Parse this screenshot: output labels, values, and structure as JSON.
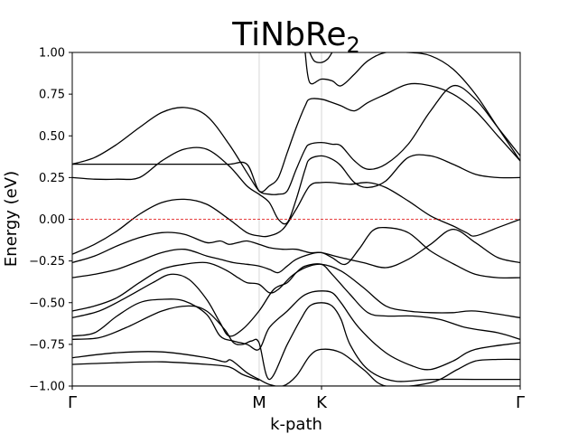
{
  "chart_data": {
    "type": "line",
    "title_main": "TiNbRe",
    "title_sub": "2",
    "xlabel": "k-path",
    "ylabel": "Energy (eV)",
    "ylim": [
      -1.0,
      1.0
    ],
    "xlim": [
      0,
      1
    ],
    "yticks": [
      -1.0,
      -0.75,
      -0.5,
      -0.25,
      0.0,
      0.25,
      0.5,
      0.75,
      1.0
    ],
    "ytick_labels": [
      "−1.00",
      "−0.75",
      "−0.50",
      "−0.25",
      "0.00",
      "0.25",
      "0.50",
      "0.75",
      "1.00"
    ],
    "kpoints": [
      {
        "label": "Γ",
        "x": 0.0
      },
      {
        "label": "M",
        "x": 0.4173
      },
      {
        "label": "K",
        "x": 0.5565
      },
      {
        "label": "Γ",
        "x": 1.0
      }
    ],
    "fermi_level": 0.0,
    "grid": false,
    "bands": [
      {
        "x": [
          0,
          0.09,
          0.2,
          0.3,
          0.38,
          0.417,
          0.44,
          0.5,
          0.556,
          0.6,
          0.65,
          0.72,
          0.8,
          0.9,
          1.0
        ],
        "y": [
          -1.0,
          -1.0,
          -1.0,
          -1.0,
          -1.0,
          -1.0,
          -1.0,
          -1.0,
          -1.0,
          -1.0,
          -1.0,
          -1.0,
          -1.0,
          -1.0,
          -1.0
        ]
      },
      {
        "x": [
          0.0,
          0.1,
          0.2,
          0.3,
          0.35,
          0.38,
          0.417
        ],
        "y": [
          -0.87,
          -0.86,
          -0.855,
          -0.87,
          -0.885,
          -0.93,
          -0.965
        ]
      },
      {
        "x": [
          0.0,
          0.1,
          0.2,
          0.3,
          0.34,
          0.355,
          0.39,
          0.417,
          0.44,
          0.47,
          0.5,
          0.53,
          0.556,
          0.6,
          0.65,
          0.7,
          0.8,
          0.86,
          0.9,
          0.95,
          1.0
        ],
        "y": [
          -0.83,
          -0.8,
          -0.795,
          -0.83,
          -0.855,
          -0.845,
          -0.92,
          -0.96,
          -0.99,
          -1.0,
          -0.94,
          -0.82,
          -0.78,
          -0.8,
          -0.9,
          -1.0,
          -0.98,
          -0.9,
          -0.85,
          -0.84,
          -0.84
        ]
      },
      {
        "x": [
          0.0,
          0.06,
          0.12,
          0.2,
          0.26,
          0.3,
          0.34,
          0.36,
          0.38,
          0.4,
          0.417,
          0.44,
          0.48,
          0.51,
          0.53,
          0.556,
          0.58,
          0.6,
          0.62,
          0.66,
          0.72,
          0.8,
          0.9,
          1.0
        ],
        "y": [
          -0.72,
          -0.71,
          -0.65,
          -0.55,
          -0.52,
          -0.55,
          -0.66,
          -0.74,
          -0.75,
          -0.73,
          -0.74,
          -0.96,
          -0.75,
          -0.6,
          -0.52,
          -0.5,
          -0.52,
          -0.6,
          -0.75,
          -0.9,
          -0.97,
          -0.96,
          -0.96,
          -0.96
        ]
      },
      {
        "x": [
          0.0,
          0.05,
          0.1,
          0.15,
          0.2,
          0.25,
          0.3,
          0.33,
          0.36,
          0.39,
          0.417,
          0.44,
          0.48,
          0.51,
          0.53,
          0.556,
          0.58,
          0.6,
          0.64,
          0.7,
          0.76,
          0.8,
          0.85,
          0.9,
          1.0
        ],
        "y": [
          -0.7,
          -0.68,
          -0.58,
          -0.5,
          -0.48,
          -0.49,
          -0.57,
          -0.7,
          -0.73,
          -0.75,
          -0.78,
          -0.65,
          -0.55,
          -0.47,
          -0.44,
          -0.43,
          -0.44,
          -0.5,
          -0.65,
          -0.8,
          -0.88,
          -0.9,
          -0.85,
          -0.78,
          -0.74
        ]
      },
      {
        "x": [
          0.0,
          0.06,
          0.12,
          0.18,
          0.22,
          0.26,
          0.3,
          0.33,
          0.35,
          0.38,
          0.417,
          0.45,
          0.48,
          0.5,
          0.52,
          0.556,
          0.58,
          0.62,
          0.66,
          0.7,
          0.76,
          0.82,
          0.88,
          0.95,
          1.0
        ],
        "y": [
          -0.59,
          -0.55,
          -0.47,
          -0.38,
          -0.33,
          -0.36,
          -0.48,
          -0.62,
          -0.7,
          -0.66,
          -0.55,
          -0.42,
          -0.38,
          -0.32,
          -0.28,
          -0.27,
          -0.33,
          -0.45,
          -0.56,
          -0.58,
          -0.58,
          -0.6,
          -0.65,
          -0.68,
          -0.72
        ]
      },
      {
        "x": [
          0.0,
          0.05,
          0.1,
          0.15,
          0.2,
          0.25,
          0.3,
          0.34,
          0.37,
          0.39,
          0.417,
          0.44,
          0.46,
          0.49,
          0.52,
          0.556,
          0.6,
          0.65,
          0.7,
          0.75,
          0.8,
          0.85,
          0.9,
          1.0
        ],
        "y": [
          -0.55,
          -0.52,
          -0.47,
          -0.38,
          -0.3,
          -0.27,
          -0.26,
          -0.3,
          -0.35,
          -0.38,
          -0.39,
          -0.44,
          -0.42,
          -0.34,
          -0.29,
          -0.27,
          -0.31,
          -0.41,
          -0.52,
          -0.55,
          -0.56,
          -0.56,
          -0.55,
          -0.59
        ]
      },
      {
        "x": [
          0.0,
          0.05,
          0.1,
          0.15,
          0.2,
          0.25,
          0.3,
          0.33,
          0.36,
          0.39,
          0.417,
          0.44,
          0.46,
          0.48,
          0.5,
          0.53,
          0.556,
          0.58,
          0.61,
          0.64,
          0.67,
          0.7,
          0.75,
          0.8,
          0.86,
          0.9,
          0.95,
          1.0
        ],
        "y": [
          -0.35,
          -0.33,
          -0.3,
          -0.25,
          -0.2,
          -0.18,
          -0.22,
          -0.24,
          -0.26,
          -0.27,
          -0.28,
          -0.3,
          -0.32,
          -0.28,
          -0.24,
          -0.21,
          -0.2,
          -0.23,
          -0.27,
          -0.18,
          -0.07,
          -0.05,
          -0.08,
          -0.19,
          -0.28,
          -0.33,
          -0.35,
          -0.35
        ]
      },
      {
        "x": [
          0.0,
          0.05,
          0.1,
          0.15,
          0.2,
          0.25,
          0.3,
          0.33,
          0.35,
          0.37,
          0.39,
          0.417,
          0.44,
          0.47,
          0.5,
          0.53,
          0.556,
          0.6,
          0.65,
          0.7,
          0.75,
          0.8,
          0.85,
          0.9,
          0.95,
          1.0
        ],
        "y": [
          -0.26,
          -0.22,
          -0.16,
          -0.11,
          -0.08,
          -0.09,
          -0.14,
          -0.13,
          -0.15,
          -0.14,
          -0.13,
          -0.15,
          -0.17,
          -0.18,
          -0.18,
          -0.2,
          -0.2,
          -0.23,
          -0.26,
          -0.29,
          -0.24,
          -0.15,
          -0.06,
          -0.14,
          -0.23,
          -0.26
        ]
      },
      {
        "x": [
          0.0,
          0.05,
          0.1,
          0.15,
          0.2,
          0.25,
          0.3,
          0.35,
          0.39,
          0.417,
          0.44,
          0.47,
          0.5,
          0.53,
          0.556,
          0.58,
          0.62,
          0.66,
          0.7,
          0.75,
          0.8,
          0.85,
          0.88,
          0.9,
          0.95,
          1.0
        ],
        "y": [
          -0.21,
          -0.15,
          -0.07,
          0.03,
          0.1,
          0.12,
          0.09,
          0.0,
          -0.08,
          -0.1,
          -0.1,
          -0.06,
          0.06,
          0.2,
          0.22,
          0.22,
          0.21,
          0.22,
          0.19,
          0.11,
          0.02,
          -0.04,
          -0.08,
          -0.1,
          -0.05,
          0.0
        ]
      },
      {
        "x": [
          0.0,
          0.05,
          0.1,
          0.15,
          0.2,
          0.25,
          0.3,
          0.35,
          0.39,
          0.417,
          0.44,
          0.46,
          0.48,
          0.5,
          0.52,
          0.53,
          0.556,
          0.58,
          0.6,
          0.63,
          0.66,
          0.7,
          0.75,
          0.8,
          0.85,
          0.9,
          0.95,
          1.0
        ],
        "y": [
          0.25,
          0.24,
          0.24,
          0.25,
          0.35,
          0.42,
          0.42,
          0.32,
          0.2,
          0.15,
          0.1,
          0.0,
          -0.02,
          0.12,
          0.3,
          0.36,
          0.38,
          0.36,
          0.32,
          0.22,
          0.19,
          0.23,
          0.37,
          0.38,
          0.33,
          0.27,
          0.25,
          0.25
        ]
      },
      {
        "x": [
          0.0,
          0.05,
          0.1,
          0.15,
          0.2,
          0.25,
          0.3,
          0.35,
          0.39,
          0.417,
          0.44,
          0.46,
          0.48,
          0.5,
          0.52,
          0.53,
          0.556,
          0.58,
          0.6,
          0.63,
          0.66,
          0.7,
          0.75,
          0.8,
          0.85,
          0.9,
          0.95,
          1.0
        ],
        "y": [
          0.33,
          0.37,
          0.45,
          0.55,
          0.64,
          0.67,
          0.62,
          0.45,
          0.28,
          0.17,
          0.15,
          0.15,
          0.17,
          0.3,
          0.42,
          0.45,
          0.46,
          0.45,
          0.44,
          0.35,
          0.3,
          0.33,
          0.45,
          0.65,
          0.8,
          0.72,
          0.55,
          0.38
        ]
      },
      {
        "x": [
          0.0,
          0.05,
          0.1,
          0.15,
          0.2,
          0.25,
          0.3,
          0.35,
          0.39,
          0.417,
          0.44,
          0.46,
          0.48,
          0.5,
          0.52,
          0.53,
          0.556,
          0.58,
          0.6,
          0.63,
          0.66,
          0.7,
          0.75,
          0.8,
          0.85,
          0.9,
          0.95,
          1.0
        ],
        "y": [
          0.33,
          0.33,
          0.33,
          0.33,
          0.33,
          0.33,
          0.33,
          0.33,
          0.33,
          0.17,
          0.2,
          0.25,
          0.4,
          0.55,
          0.68,
          0.72,
          0.72,
          0.7,
          0.68,
          0.65,
          0.7,
          0.75,
          0.81,
          0.8,
          0.75,
          0.65,
          0.5,
          0.35
        ]
      },
      {
        "x": [
          0.52,
          0.53,
          0.556,
          0.58,
          0.6,
          0.63,
          0.66,
          0.7,
          0.75,
          0.8,
          0.85,
          0.9,
          0.95,
          1.0
        ],
        "y": [
          1.0,
          0.82,
          0.84,
          0.83,
          0.8,
          0.87,
          0.95,
          1.0,
          1.0,
          0.98,
          0.9,
          0.75,
          0.55,
          0.35
        ]
      },
      {
        "x": [
          0.53,
          0.54,
          0.556,
          0.57,
          0.58
        ],
        "y": [
          1.0,
          0.95,
          0.94,
          0.96,
          1.0
        ]
      }
    ]
  }
}
